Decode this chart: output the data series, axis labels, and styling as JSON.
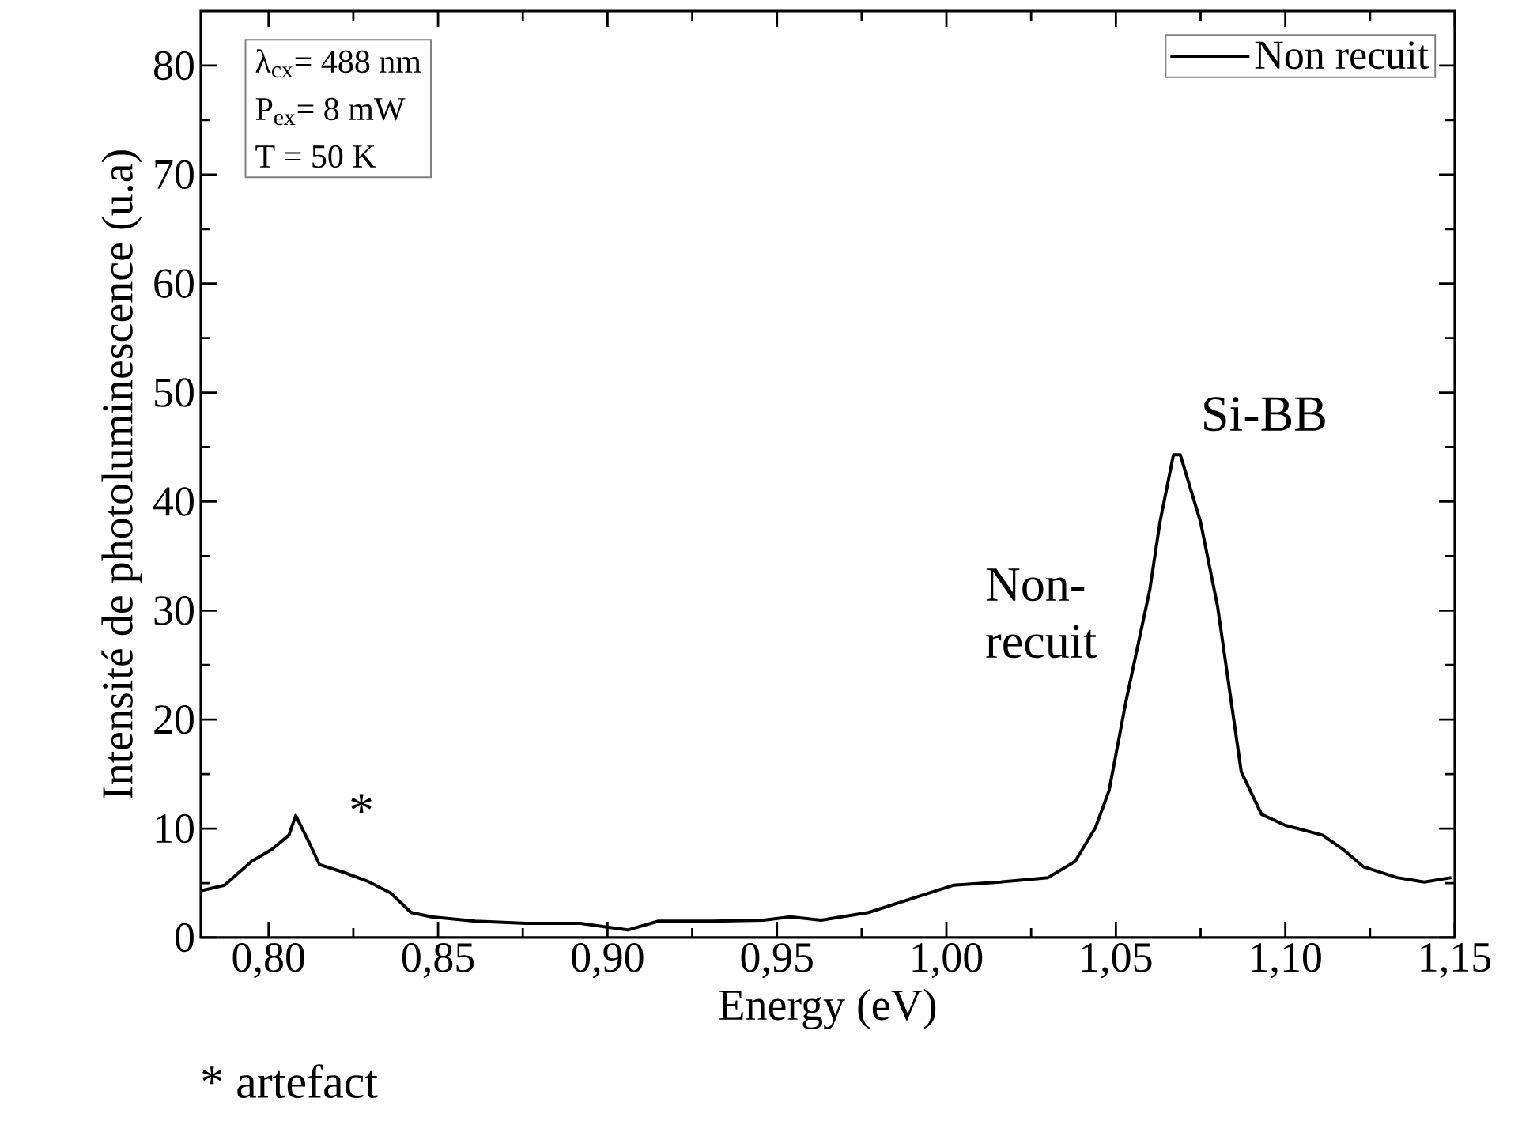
{
  "chart_data": {
    "type": "line",
    "xlabel": "Energy (eV)",
    "ylabel": "Intensité de photoluminescence (u.a)",
    "x": [
      0.78,
      0.787,
      0.795,
      0.801,
      0.806,
      0.808,
      0.812,
      0.815,
      0.822,
      0.829,
      0.836,
      0.842,
      0.848,
      0.861,
      0.876,
      0.892,
      0.906,
      0.915,
      0.931,
      0.946,
      0.954,
      0.963,
      0.977,
      0.99,
      1.002,
      1.016,
      1.03,
      1.038,
      1.044,
      1.048,
      1.053,
      1.06,
      1.063,
      1.067,
      1.069,
      1.075,
      1.08,
      1.087,
      1.093,
      1.1,
      1.111,
      1.117,
      1.123,
      1.133,
      1.141,
      1.149
    ],
    "series": [
      {
        "name": "Non recuit",
        "color": "#000000",
        "values": [
          4.3,
          4.8,
          7.0,
          8.1,
          9.4,
          11.2,
          8.7,
          6.7,
          6.0,
          5.2,
          4.1,
          2.3,
          1.9,
          1.5,
          1.3,
          1.3,
          0.7,
          1.5,
          1.5,
          1.6,
          1.9,
          1.6,
          2.3,
          3.6,
          4.8,
          5.1,
          5.5,
          7.0,
          10.1,
          13.5,
          21.7,
          31.9,
          38.1,
          44.3,
          44.3,
          38.1,
          30.4,
          15.2,
          11.3,
          10.3,
          9.4,
          8.1,
          6.5,
          5.5,
          5.1,
          5.5
        ]
      }
    ],
    "xlim": [
      0.78,
      1.15
    ],
    "ylim": [
      0,
      85
    ],
    "xticks": [
      {
        "value": 0.8,
        "label": "0,80"
      },
      {
        "value": 0.85,
        "label": "0,85"
      },
      {
        "value": 0.9,
        "label": "0,90"
      },
      {
        "value": 0.95,
        "label": "0,95"
      },
      {
        "value": 1.0,
        "label": "1,00"
      },
      {
        "value": 1.05,
        "label": "1,05"
      },
      {
        "value": 1.1,
        "label": "1,10"
      },
      {
        "value": 1.15,
        "label": "1,15"
      }
    ],
    "yticks": [
      0,
      10,
      20,
      30,
      40,
      50,
      60,
      70,
      80
    ],
    "legend": "top right",
    "line_style": "solid",
    "annotations": [
      "λ$_{cx}$= 488 nm",
      "P$_{ex}$= 8 mW",
      "T = 50 K",
      "* artefact",
      "*",
      "Si-BB",
      "Non-recuit"
    ]
  }
}
